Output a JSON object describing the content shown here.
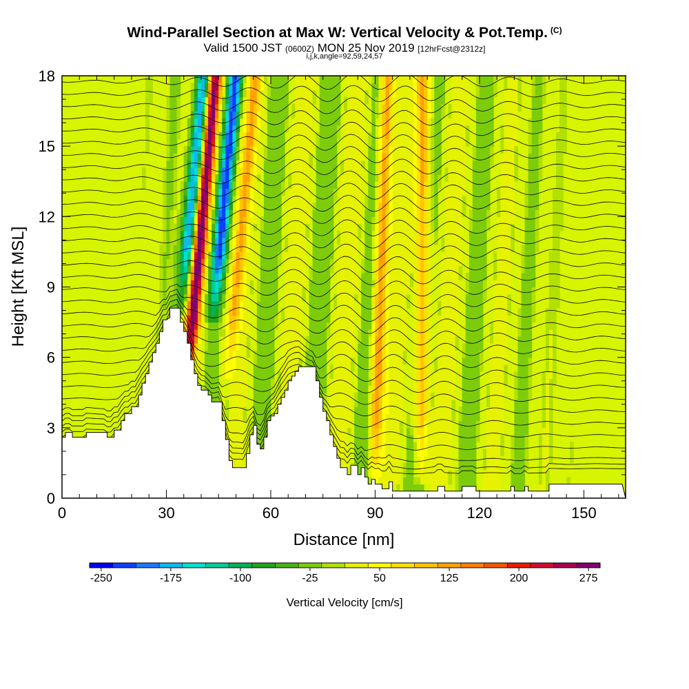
{
  "header": {
    "title": "Wind-Parallel Section at Max W: Vertical Velocity & Pot.Temp.",
    "copyright": "(C)",
    "valid_prefix": "Valid 1500 JST",
    "utc": "(0600Z)",
    "valid_date": "MON 25 Nov 2019",
    "forecast": "[12hrFcst@2312z]",
    "indices": "i,j,k,angle=92,59,24,57"
  },
  "chart_data": {
    "type": "heatmap",
    "title": "Wind-Parallel Section at Max W: Vertical Velocity & Pot.Temp.",
    "xlabel": "Distance [nm]",
    "ylabel": "Height [Kft MSL]",
    "xlim": [
      0,
      162
    ],
    "ylim": [
      0,
      18
    ],
    "xticks": [
      0,
      30,
      60,
      90,
      120,
      150
    ],
    "yticks": [
      0,
      3,
      6,
      9,
      12,
      15,
      18
    ],
    "colorbar": {
      "title": "Vertical Velocity [cm/s]",
      "tick_labels": [
        "-250",
        "-175",
        "-100",
        "-25",
        "50",
        "125",
        "200",
        "275"
      ],
      "tick_values": [
        -250,
        -175,
        -100,
        -25,
        50,
        125,
        200,
        275
      ],
      "range": [
        -262.5,
        287.5
      ],
      "step": 25,
      "colors": [
        "#0000ee",
        "#0b40ff",
        "#1e78ff",
        "#11b8ee",
        "#00e0d0",
        "#00cc96",
        "#00b35a",
        "#22a31f",
        "#4cb317",
        "#7dcc0b",
        "#b2e000",
        "#e6f200",
        "#ffff00",
        "#ffe000",
        "#ffc400",
        "#ffa200",
        "#ff7f00",
        "#f25a00",
        "#e61e00",
        "#cf0f2e",
        "#a80050",
        "#800070"
      ]
    },
    "terrain_profile_kft": [
      [
        0,
        2.6
      ],
      [
        1,
        2.6
      ],
      [
        1,
        2.8
      ],
      [
        3,
        2.8
      ],
      [
        3,
        2.6
      ],
      [
        7,
        2.6
      ],
      [
        7,
        2.8
      ],
      [
        13,
        2.8
      ],
      [
        13,
        2.6
      ],
      [
        15,
        2.6
      ],
      [
        15,
        2.9
      ],
      [
        17,
        2.9
      ],
      [
        17,
        3.3
      ],
      [
        18,
        3.3
      ],
      [
        18,
        3.6
      ],
      [
        20,
        3.6
      ],
      [
        20,
        3.9
      ],
      [
        22,
        3.9
      ],
      [
        22,
        4.4
      ],
      [
        23,
        4.4
      ],
      [
        23,
        4.9
      ],
      [
        24,
        4.9
      ],
      [
        24,
        5.3
      ],
      [
        25,
        5.3
      ],
      [
        25,
        5.8
      ],
      [
        26,
        5.8
      ],
      [
        26,
        6.2
      ],
      [
        27,
        6.2
      ],
      [
        27,
        6.6
      ],
      [
        28,
        6.6
      ],
      [
        28,
        7.1
      ],
      [
        29,
        7.1
      ],
      [
        29,
        7.6
      ],
      [
        30,
        7.6
      ],
      [
        31,
        7.7
      ],
      [
        31,
        8.1
      ],
      [
        34,
        8.1
      ],
      [
        34,
        7.5
      ],
      [
        35,
        7.5
      ],
      [
        35,
        7.1
      ],
      [
        36,
        7.1
      ],
      [
        36,
        6.6
      ],
      [
        37,
        6.6
      ],
      [
        37,
        5.9
      ],
      [
        38,
        5.9
      ],
      [
        38,
        5.3
      ],
      [
        39,
        5.3
      ],
      [
        39,
        4.8
      ],
      [
        40,
        4.8
      ],
      [
        40,
        4.6
      ],
      [
        42,
        4.6
      ],
      [
        42,
        4.4
      ],
      [
        43,
        4.4
      ],
      [
        43,
        4.1
      ],
      [
        46,
        4.1
      ],
      [
        46,
        3.3
      ],
      [
        47,
        3.3
      ],
      [
        47,
        2.5
      ],
      [
        48,
        2.5
      ],
      [
        48,
        1.6
      ],
      [
        49,
        1.6
      ],
      [
        49,
        1.3
      ],
      [
        53,
        1.3
      ],
      [
        53,
        1.9
      ],
      [
        54,
        1.9
      ],
      [
        54,
        2.7
      ],
      [
        55,
        2.7
      ],
      [
        55,
        3.1
      ],
      [
        56,
        3.1
      ],
      [
        56,
        2.3
      ],
      [
        57,
        2.3
      ],
      [
        57,
        2.1
      ],
      [
        58,
        2.1
      ],
      [
        58,
        2.6
      ],
      [
        59,
        2.6
      ],
      [
        59,
        3.3
      ],
      [
        60,
        3.3
      ],
      [
        60,
        3.5
      ],
      [
        61,
        3.5
      ],
      [
        61,
        3.6
      ],
      [
        62,
        3.6
      ],
      [
        62,
        4.0
      ],
      [
        63,
        4.0
      ],
      [
        63,
        4.3
      ],
      [
        64,
        4.3
      ],
      [
        64,
        4.6
      ],
      [
        65,
        4.6
      ],
      [
        65,
        5.0
      ],
      [
        66,
        5.0
      ],
      [
        66,
        5.2
      ],
      [
        67,
        5.2
      ],
      [
        67,
        5.4
      ],
      [
        68,
        5.4
      ],
      [
        68,
        5.6
      ],
      [
        73,
        5.6
      ],
      [
        73,
        5.0
      ],
      [
        74,
        5.0
      ],
      [
        74,
        4.3
      ],
      [
        75,
        4.3
      ],
      [
        75,
        3.7
      ],
      [
        76,
        3.7
      ],
      [
        76,
        3.3
      ],
      [
        77,
        3.3
      ],
      [
        77,
        2.7
      ],
      [
        78,
        2.7
      ],
      [
        78,
        2.2
      ],
      [
        79,
        2.2
      ],
      [
        79,
        1.7
      ],
      [
        80,
        1.7
      ],
      [
        80,
        1.3
      ],
      [
        82,
        1.3
      ],
      [
        82,
        1.0
      ],
      [
        83,
        1.0
      ],
      [
        83,
        1.4
      ],
      [
        85,
        1.4
      ],
      [
        85,
        1.0
      ],
      [
        86,
        1.0
      ],
      [
        86,
        1.3
      ],
      [
        87,
        1.3
      ],
      [
        87,
        0.9
      ],
      [
        88,
        0.9
      ],
      [
        88,
        0.6
      ],
      [
        89,
        0.6
      ],
      [
        89,
        0.8
      ],
      [
        90,
        0.8
      ],
      [
        90,
        0.6
      ],
      [
        92,
        0.6
      ],
      [
        92,
        0.4
      ],
      [
        94,
        0.4
      ],
      [
        94,
        0.7
      ],
      [
        95,
        0.7
      ],
      [
        95,
        0.3
      ],
      [
        96,
        0.3
      ],
      [
        96,
        0.3
      ],
      [
        108,
        0.3
      ],
      [
        108,
        0.5
      ],
      [
        110,
        0.5
      ],
      [
        110,
        0.3
      ],
      [
        115,
        0.3
      ],
      [
        115,
        0.5
      ],
      [
        119,
        0.5
      ],
      [
        119,
        0.3
      ],
      [
        129,
        0.3
      ],
      [
        129,
        0.5
      ],
      [
        130,
        0.5
      ],
      [
        130,
        0.3
      ],
      [
        133,
        0.3
      ],
      [
        133,
        0.5
      ],
      [
        134,
        0.5
      ],
      [
        134,
        0.3
      ],
      [
        140,
        0.3
      ],
      [
        140,
        0.6
      ],
      [
        161,
        0.6
      ]
    ],
    "updraft_bands": [
      {
        "center_nm": 38.5,
        "tilt": 0.63,
        "peak_cm_s": 280,
        "sign": 1,
        "zmin": 4.5
      },
      {
        "center_nm": 44.3,
        "tilt": 0.63,
        "peak_cm_s": -215,
        "sign": -1,
        "zmin": 7.5
      },
      {
        "center_nm": 35.0,
        "tilt": 0.63,
        "peak_cm_s": -205,
        "sign": -1,
        "zmin": 7.8
      },
      {
        "center_nm": 50.0,
        "tilt": 0.63,
        "peak_cm_s": 100,
        "sign": 1,
        "zmin": 5.0
      },
      {
        "center_nm": 91.5,
        "tilt": 0.23,
        "peak_cm_s": 145,
        "sign": 1,
        "zmin": 0.5
      },
      {
        "center_nm": 103.5,
        "tilt": 0.05,
        "peak_cm_s": 135,
        "sign": 1,
        "zmin": 0.5
      }
    ]
  },
  "colors": {
    "background": "#d7f400",
    "terrain": "#ffffff",
    "contour": "#000000"
  }
}
